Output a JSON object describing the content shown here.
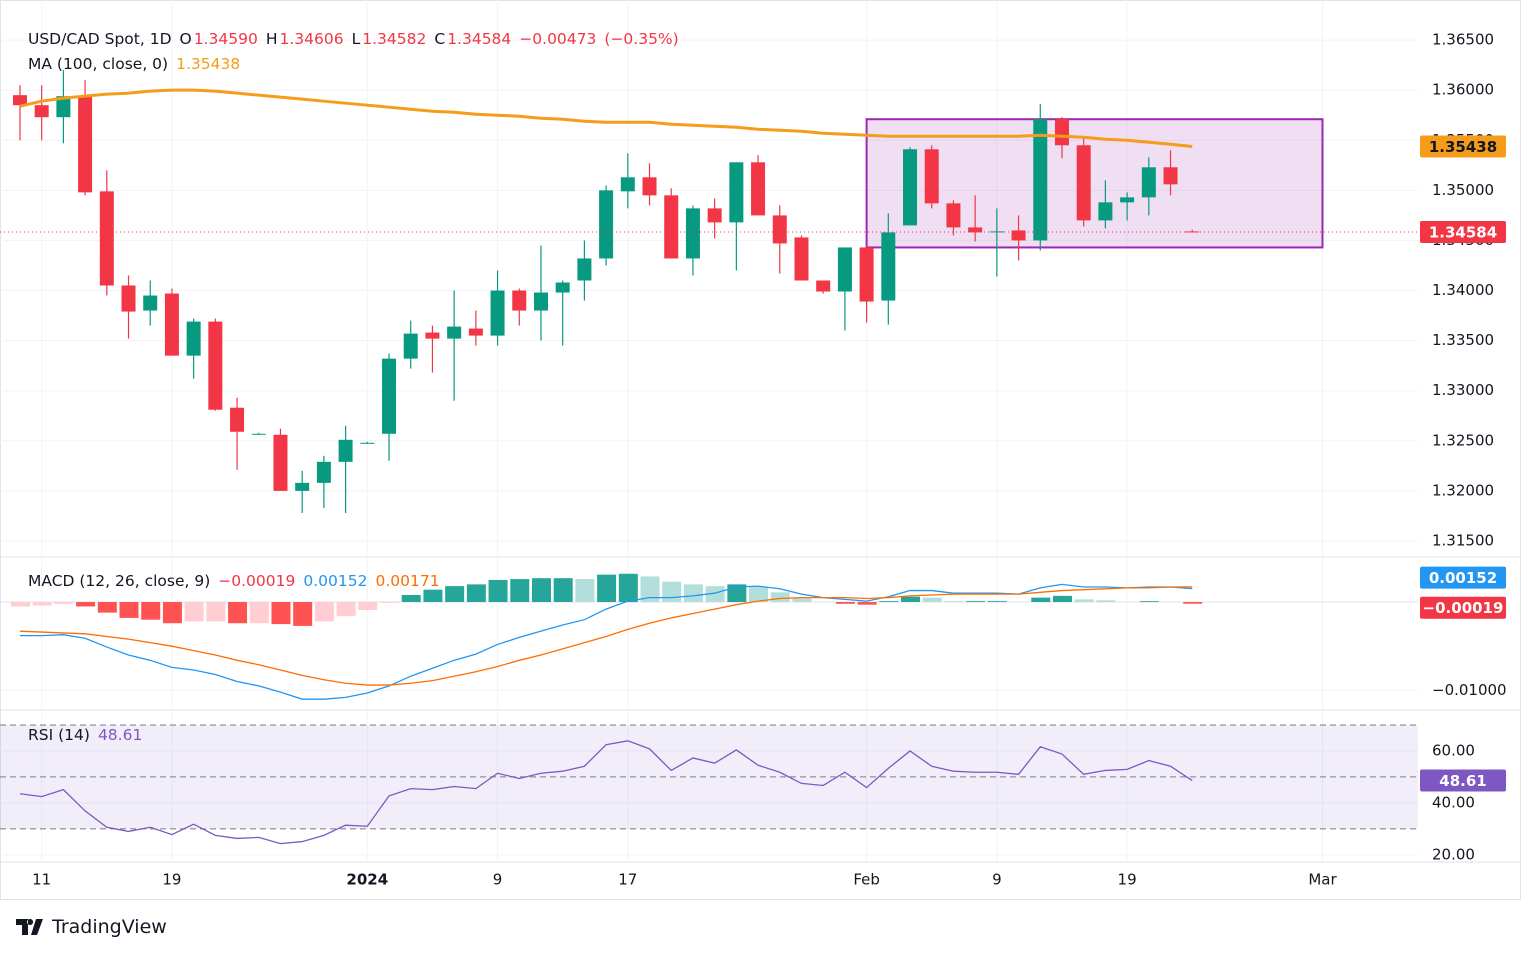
{
  "chart_data": [
    {
      "type": "candlestick",
      "title": "USD/CAD Spot, 1D",
      "ohlc_legend": [
        {
          "label": "O",
          "value": "1.34590"
        },
        {
          "label": "H",
          "value": "1.34606"
        },
        {
          "label": "L",
          "value": "1.34582"
        },
        {
          "label": "C",
          "value": "1.34584"
        }
      ],
      "change": "−0.00473",
      "change_pct": "(−0.35%)",
      "ma_name": "MA (100, close, 0)",
      "ma_label": "1.35438",
      "last_label": "1.34584",
      "up_color": "#089981",
      "down_color": "#f23645",
      "ma_color": "#f59c1a",
      "box_color": "#9c27b0",
      "xlim": [
        -0.92,
        64.4
      ],
      "xticks": [
        {
          "value": 1,
          "label": "11"
        },
        {
          "value": 7,
          "label": "19"
        },
        {
          "value": 16,
          "label": "2024"
        },
        {
          "value": 22,
          "label": "9"
        },
        {
          "value": 28,
          "label": "17"
        },
        {
          "value": 39,
          "label": "Feb"
        },
        {
          "value": 45,
          "label": "9"
        },
        {
          "value": 51,
          "label": "19"
        },
        {
          "value": 60,
          "label": "Mar"
        }
      ],
      "ylim": [
        1.3134,
        1.369
      ],
      "yticks": [
        {
          "value": 1.315,
          "label": "1.31500"
        },
        {
          "value": 1.32,
          "label": "1.32000"
        },
        {
          "value": 1.325,
          "label": "1.32500"
        },
        {
          "value": 1.33,
          "label": "1.33000"
        },
        {
          "value": 1.335,
          "label": "1.33500"
        },
        {
          "value": 1.34,
          "label": "1.34000"
        },
        {
          "value": 1.345,
          "label": "1.34500"
        },
        {
          "value": 1.35,
          "label": "1.35000"
        },
        {
          "value": 1.355,
          "label": "1.35500"
        },
        {
          "value": 1.36,
          "label": "1.36000"
        },
        {
          "value": 1.365,
          "label": "1.36500"
        }
      ],
      "box": {
        "x0": 39,
        "x1": 60,
        "y0": 1.3443,
        "y1": 1.3571
      },
      "candles": [
        {
          "o": 1.3595,
          "h": 1.3605,
          "l": 1.355,
          "c": 1.3585
        },
        {
          "o": 1.3585,
          "h": 1.3605,
          "l": 1.355,
          "c": 1.3573
        },
        {
          "o": 1.3573,
          "h": 1.362,
          "l": 1.3547,
          "c": 1.3594
        },
        {
          "o": 1.3594,
          "h": 1.361,
          "l": 1.3495,
          "c": 1.3498
        },
        {
          "o": 1.3499,
          "h": 1.352,
          "l": 1.3395,
          "c": 1.3405
        },
        {
          "o": 1.3405,
          "h": 1.3415,
          "l": 1.3352,
          "c": 1.3379
        },
        {
          "o": 1.338,
          "h": 1.341,
          "l": 1.3365,
          "c": 1.3395
        },
        {
          "o": 1.3397,
          "h": 1.3402,
          "l": 1.3335,
          "c": 1.3335
        },
        {
          "o": 1.3335,
          "h": 1.3372,
          "l": 1.3312,
          "c": 1.3369
        },
        {
          "o": 1.3369,
          "h": 1.3372,
          "l": 1.328,
          "c": 1.3281
        },
        {
          "o": 1.3283,
          "h": 1.3293,
          "l": 1.3221,
          "c": 1.3259
        },
        {
          "o": 1.3257,
          "h": 1.3258,
          "l": 1.3256,
          "c": 1.3257
        },
        {
          "o": 1.3256,
          "h": 1.3262,
          "l": 1.32,
          "c": 1.32
        },
        {
          "o": 1.32,
          "h": 1.322,
          "l": 1.3178,
          "c": 1.3208
        },
        {
          "o": 1.3208,
          "h": 1.3235,
          "l": 1.3183,
          "c": 1.3229
        },
        {
          "o": 1.3229,
          "h": 1.3265,
          "l": 1.3178,
          "c": 1.3251
        },
        {
          "o": 1.3248,
          "h": 1.3249,
          "l": 1.3247,
          "c": 1.3248
        },
        {
          "o": 1.3257,
          "h": 1.3337,
          "l": 1.323,
          "c": 1.3332
        },
        {
          "o": 1.3332,
          "h": 1.337,
          "l": 1.3322,
          "c": 1.3357
        },
        {
          "o": 1.3358,
          "h": 1.3365,
          "l": 1.3318,
          "c": 1.3352
        },
        {
          "o": 1.3352,
          "h": 1.34,
          "l": 1.329,
          "c": 1.3364
        },
        {
          "o": 1.3362,
          "h": 1.338,
          "l": 1.3345,
          "c": 1.3355
        },
        {
          "o": 1.3355,
          "h": 1.342,
          "l": 1.3345,
          "c": 1.34
        },
        {
          "o": 1.34,
          "h": 1.3402,
          "l": 1.3365,
          "c": 1.338
        },
        {
          "o": 1.338,
          "h": 1.3445,
          "l": 1.335,
          "c": 1.3398
        },
        {
          "o": 1.3398,
          "h": 1.341,
          "l": 1.3345,
          "c": 1.3408
        },
        {
          "o": 1.341,
          "h": 1.345,
          "l": 1.339,
          "c": 1.3432
        },
        {
          "o": 1.3432,
          "h": 1.3505,
          "l": 1.3425,
          "c": 1.35
        },
        {
          "o": 1.3499,
          "h": 1.3537,
          "l": 1.3482,
          "c": 1.3513
        },
        {
          "o": 1.3513,
          "h": 1.3527,
          "l": 1.3485,
          "c": 1.3495
        },
        {
          "o": 1.3495,
          "h": 1.3502,
          "l": 1.3432,
          "c": 1.3432
        },
        {
          "o": 1.3432,
          "h": 1.3485,
          "l": 1.3415,
          "c": 1.3482
        },
        {
          "o": 1.3482,
          "h": 1.3492,
          "l": 1.3452,
          "c": 1.3468
        },
        {
          "o": 1.3468,
          "h": 1.3528,
          "l": 1.342,
          "c": 1.3528
        },
        {
          "o": 1.3528,
          "h": 1.3535,
          "l": 1.3475,
          "c": 1.3475
        },
        {
          "o": 1.3475,
          "h": 1.3485,
          "l": 1.3417,
          "c": 1.3447
        },
        {
          "o": 1.3453,
          "h": 1.3455,
          "l": 1.341,
          "c": 1.341
        },
        {
          "o": 1.341,
          "h": 1.341,
          "l": 1.3397,
          "c": 1.3399
        },
        {
          "o": 1.3399,
          "h": 1.3443,
          "l": 1.336,
          "c": 1.3443
        },
        {
          "o": 1.3443,
          "h": 1.3445,
          "l": 1.3368,
          "c": 1.3389
        },
        {
          "o": 1.339,
          "h": 1.3477,
          "l": 1.3366,
          "c": 1.3458
        },
        {
          "o": 1.3465,
          "h": 1.3543,
          "l": 1.3465,
          "c": 1.3541
        },
        {
          "o": 1.3541,
          "h": 1.3545,
          "l": 1.3482,
          "c": 1.3487
        },
        {
          "o": 1.3487,
          "h": 1.349,
          "l": 1.3455,
          "c": 1.3463
        },
        {
          "o": 1.3463,
          "h": 1.3495,
          "l": 1.3449,
          "c": 1.3458
        },
        {
          "o": 1.3459,
          "h": 1.3482,
          "l": 1.3414,
          "c": 1.3459
        },
        {
          "o": 1.346,
          "h": 1.3475,
          "l": 1.343,
          "c": 1.345
        },
        {
          "o": 1.345,
          "h": 1.3586,
          "l": 1.344,
          "c": 1.3571
        },
        {
          "o": 1.3571,
          "h": 1.3573,
          "l": 1.3532,
          "c": 1.3545
        },
        {
          "o": 1.3545,
          "h": 1.3553,
          "l": 1.3464,
          "c": 1.347
        },
        {
          "o": 1.347,
          "h": 1.351,
          "l": 1.3462,
          "c": 1.3488
        },
        {
          "o": 1.3488,
          "h": 1.3498,
          "l": 1.347,
          "c": 1.3493
        },
        {
          "o": 1.3493,
          "h": 1.3533,
          "l": 1.3475,
          "c": 1.3523
        },
        {
          "o": 1.3523,
          "h": 1.354,
          "l": 1.3495,
          "c": 1.3506
        },
        {
          "o": 1.3459,
          "h": 1.34606,
          "l": 1.34582,
          "c": 1.34584
        }
      ],
      "ma": [
        1.3584,
        1.3589,
        1.3592,
        1.3594,
        1.3596,
        1.3597,
        1.3599,
        1.36,
        1.36,
        1.3599,
        1.3597,
        1.3595,
        1.3593,
        1.3591,
        1.3589,
        1.3587,
        1.3585,
        1.3583,
        1.3581,
        1.3579,
        1.3578,
        1.3576,
        1.3575,
        1.3574,
        1.3572,
        1.3571,
        1.3569,
        1.3568,
        1.3568,
        1.3568,
        1.3566,
        1.3565,
        1.3564,
        1.3563,
        1.3561,
        1.356,
        1.3559,
        1.3557,
        1.3556,
        1.3555,
        1.3554,
        1.3554,
        1.3554,
        1.3554,
        1.3554,
        1.3554,
        1.3554,
        1.3555,
        1.3554,
        1.3553,
        1.3551,
        1.355,
        1.3548,
        1.3546,
        1.35438
      ]
    },
    {
      "type": "macd",
      "name": "MACD (12, 26, close, 9)",
      "hist_label": "−0.00019",
      "macd_label": "0.00152",
      "signal_label": "0.00171",
      "macd_color": "#2196f3",
      "signal_color": "#ff6d00",
      "hist_colors": [
        "#26a69a",
        "#b2dfdb",
        "#ffcdd2",
        "#ff5252"
      ],
      "ylim": [
        -0.012,
        0.0051
      ],
      "yticks": [
        {
          "value": -0.01,
          "label": "−0.01000"
        }
      ],
      "macd": [
        -0.0038,
        -0.0038,
        -0.0037,
        -0.0041,
        -0.0051,
        -0.006,
        -0.0066,
        -0.0074,
        -0.0077,
        -0.0082,
        -0.009,
        -0.0095,
        -0.0102,
        -0.011,
        -0.011,
        -0.0108,
        -0.0103,
        -0.0095,
        -0.0084,
        -0.0075,
        -0.0066,
        -0.0059,
        -0.0048,
        -0.004,
        -0.0033,
        -0.0026,
        -0.002,
        -0.0008,
        0.0001,
        0.0005,
        0.0005,
        0.0007,
        0.001,
        0.0017,
        0.0018,
        0.0015,
        0.0009,
        0.0005,
        0.0003,
        0.0001,
        0.0006,
        0.0013,
        0.0013,
        0.001,
        0.001,
        0.001,
        0.0009,
        0.0016,
        0.002,
        0.0017,
        0.0017,
        0.0016,
        0.0017,
        0.0017,
        0.00152
      ],
      "signal": [
        -0.0033,
        -0.0034,
        -0.0035,
        -0.0036,
        -0.0039,
        -0.0042,
        -0.0046,
        -0.005,
        -0.0055,
        -0.006,
        -0.0066,
        -0.0071,
        -0.0077,
        -0.0083,
        -0.0088,
        -0.0092,
        -0.0094,
        -0.0094,
        -0.0092,
        -0.0089,
        -0.0084,
        -0.0079,
        -0.0073,
        -0.0066,
        -0.006,
        -0.0053,
        -0.0046,
        -0.0039,
        -0.0031,
        -0.0024,
        -0.0018,
        -0.0013,
        -0.0008,
        -0.0003,
        0.0001,
        0.0004,
        0.0005,
        0.0005,
        0.0005,
        0.0004,
        0.0005,
        0.0007,
        0.0008,
        0.0009,
        0.0009,
        0.0009,
        0.0009,
        0.0011,
        0.0013,
        0.0014,
        0.0015,
        0.0016,
        0.0016,
        0.0017,
        0.00171
      ],
      "hist": [
        -0.0005,
        -0.0004,
        -0.0002,
        -0.0005,
        -0.0012,
        -0.0018,
        -0.002,
        -0.0024,
        -0.0022,
        -0.0022,
        -0.0024,
        -0.0024,
        -0.0025,
        -0.0027,
        -0.0022,
        -0.0016,
        -0.0009,
        -0.0001,
        0.0008,
        0.0014,
        0.0018,
        0.002,
        0.0025,
        0.0026,
        0.0027,
        0.0027,
        0.0026,
        0.0031,
        0.0032,
        0.0029,
        0.0023,
        0.002,
        0.0018,
        0.002,
        0.0017,
        0.0011,
        0.0004,
        0,
        -0.0002,
        -0.0003,
        0.0001,
        0.0006,
        0.0005,
        0.0001,
        0.0001,
        0.0001,
        0,
        0.0005,
        0.0007,
        0.0003,
        0.0002,
        0,
        0.0001,
        0,
        -0.00019
      ]
    },
    {
      "type": "line",
      "name": "RSI (14)",
      "value_label": "48.61",
      "color": "#7e57c2",
      "bands": [
        30,
        70
      ],
      "ylim": [
        18,
        75
      ],
      "yticks": [
        {
          "value": 20,
          "label": "20.00"
        },
        {
          "value": 40,
          "label": "40.00"
        },
        {
          "value": 60,
          "label": "60.00"
        }
      ],
      "values": [
        43.5,
        42.4,
        45.1,
        36.9,
        30.6,
        29,
        30.6,
        27.8,
        31.8,
        27.5,
        26.3,
        26.7,
        24.3,
        25.1,
        27.5,
        31.4,
        31,
        42.7,
        45.5,
        45.1,
        46.3,
        45.5,
        51.4,
        49.4,
        51.4,
        52.2,
        54.1,
        62.4,
        63.9,
        60.8,
        52.5,
        57.3,
        55.3,
        60.4,
        54.5,
        51.8,
        47.5,
        46.7,
        51.8,
        45.9,
        53.3,
        60,
        54.1,
        52.2,
        51.8,
        51.8,
        51,
        61.6,
        58.8,
        51,
        52.5,
        52.9,
        56.3,
        54.1,
        48.61
      ]
    }
  ],
  "logo": "TradingView"
}
